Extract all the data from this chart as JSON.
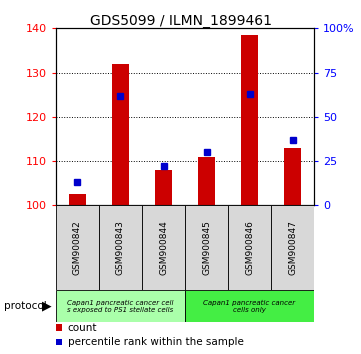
{
  "title": "GDS5099 / ILMN_1899461",
  "samples": [
    "GSM900842",
    "GSM900843",
    "GSM900844",
    "GSM900845",
    "GSM900846",
    "GSM900847"
  ],
  "counts": [
    102.5,
    132.0,
    108.0,
    111.0,
    138.5,
    113.0
  ],
  "percentiles": [
    13.0,
    62.0,
    22.0,
    30.0,
    63.0,
    37.0
  ],
  "ylim_left": [
    100,
    140
  ],
  "ylim_right": [
    0,
    100
  ],
  "yticks_left": [
    100,
    110,
    120,
    130,
    140
  ],
  "yticks_right": [
    0,
    25,
    50,
    75,
    100
  ],
  "ytick_labels_right": [
    "0",
    "25",
    "50",
    "75",
    "100%"
  ],
  "bar_color": "#cc0000",
  "marker_color": "#0000cc",
  "group1_label": "Capan1 pancreatic cancer cell\ns exposed to PS1 stellate cells",
  "group2_label": "Capan1 pancreatic cancer\ncells only",
  "group1_color": "#aaffaa",
  "group2_color": "#44ee44",
  "protocol_label": "protocol",
  "legend_count": "count",
  "legend_percentile": "percentile rank within the sample",
  "bar_width": 0.4,
  "marker_size": 5
}
